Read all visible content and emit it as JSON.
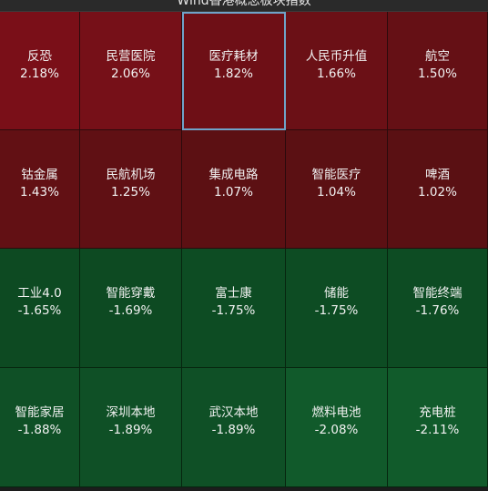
{
  "header": {
    "title": "Wind香港概念板块指数"
  },
  "tiles": [
    {
      "name": "反恐",
      "change": "2.18%",
      "color": "#7a0f18"
    },
    {
      "name": "民营医院",
      "change": "2.06%",
      "color": "#761018"
    },
    {
      "name": "医疗耗材",
      "change": "1.82%",
      "color": "#6e0f16",
      "selected": true
    },
    {
      "name": "人民币升值",
      "change": "1.66%",
      "color": "#6b1016"
    },
    {
      "name": "航空",
      "change": "1.50%",
      "color": "#651015"
    },
    {
      "name": "钴金属",
      "change": "1.43%",
      "color": "#621014"
    },
    {
      "name": "民航机场",
      "change": "1.25%",
      "color": "#601014"
    },
    {
      "name": "集成电路",
      "change": "1.07%",
      "color": "#5c1013"
    },
    {
      "name": "智能医疗",
      "change": "1.04%",
      "color": "#5b1013"
    },
    {
      "name": "啤酒",
      "change": "1.02%",
      "color": "#5a1013"
    },
    {
      "name": "工业4.0",
      "change": "-1.65%",
      "color": "#0d4a22"
    },
    {
      "name": "智能穿戴",
      "change": "-1.69%",
      "color": "#0d4a22"
    },
    {
      "name": "富士康",
      "change": "-1.75%",
      "color": "#0d4c23"
    },
    {
      "name": "储能",
      "change": "-1.75%",
      "color": "#0d4c23"
    },
    {
      "name": "智能终端",
      "change": "-1.76%",
      "color": "#0d4c23"
    },
    {
      "name": "智能家居",
      "change": "-1.88%",
      "color": "#0f5026"
    },
    {
      "name": "深圳本地",
      "change": "-1.89%",
      "color": "#0f5026"
    },
    {
      "name": "武汉本地",
      "change": "-1.89%",
      "color": "#0f5026"
    },
    {
      "name": "燃料电池",
      "change": "-2.08%",
      "color": "#115a2b"
    },
    {
      "name": "充电桩",
      "change": "-2.11%",
      "color": "#115b2b"
    }
  ]
}
